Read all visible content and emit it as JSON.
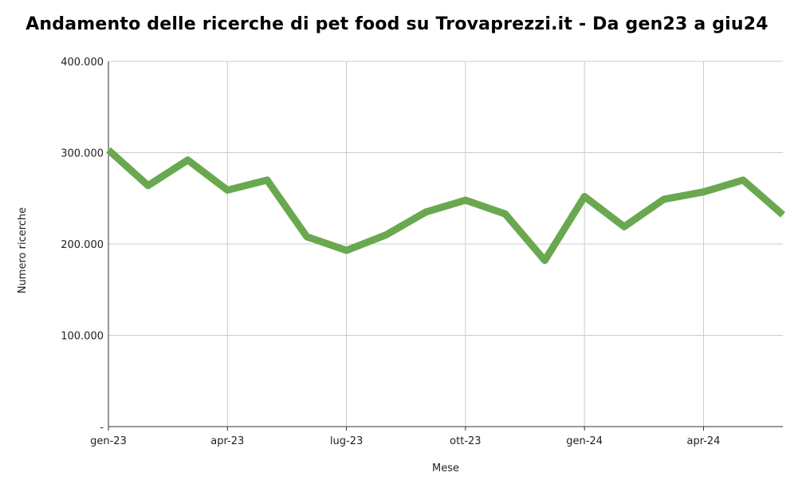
{
  "chart_data": {
    "type": "line",
    "title": "Andamento delle ricerche di pet food su Trovaprezzi.it - Da gen23 a giu24",
    "xlabel": "Mese",
    "ylabel": "Numero ricerche",
    "ylim": [
      0,
      400000
    ],
    "yticks": [
      {
        "value": 0,
        "label": "-"
      },
      {
        "value": 100000,
        "label": "100.000"
      },
      {
        "value": 200000,
        "label": "200.000"
      },
      {
        "value": 300000,
        "label": "300.000"
      },
      {
        "value": 400000,
        "label": "400.000"
      }
    ],
    "x": [
      "gen-23",
      "feb-23",
      "mar-23",
      "apr-23",
      "mag-23",
      "giu-23",
      "lug-23",
      "ago-23",
      "set-23",
      "ott-23",
      "nov-23",
      "dic-23",
      "gen-24",
      "feb-24",
      "mar-24",
      "apr-24",
      "mag-24",
      "giu-24"
    ],
    "xtick_labels": [
      {
        "index": 0,
        "label": "gen-23"
      },
      {
        "index": 3,
        "label": "apr-23"
      },
      {
        "index": 6,
        "label": "lug-23"
      },
      {
        "index": 9,
        "label": "ott-23"
      },
      {
        "index": 12,
        "label": "gen-24"
      },
      {
        "index": 15,
        "label": "apr-24"
      }
    ],
    "series": [
      {
        "values": [
          303000,
          264000,
          292000,
          259000,
          270000,
          208000,
          193000,
          210000,
          235000,
          248000,
          233000,
          182000,
          252000,
          219000,
          249000,
          257000,
          270000,
          232000
        ],
        "color": "#6aa84f"
      }
    ],
    "grid": true,
    "gridColor": "#cccccc",
    "legend": "none"
  }
}
